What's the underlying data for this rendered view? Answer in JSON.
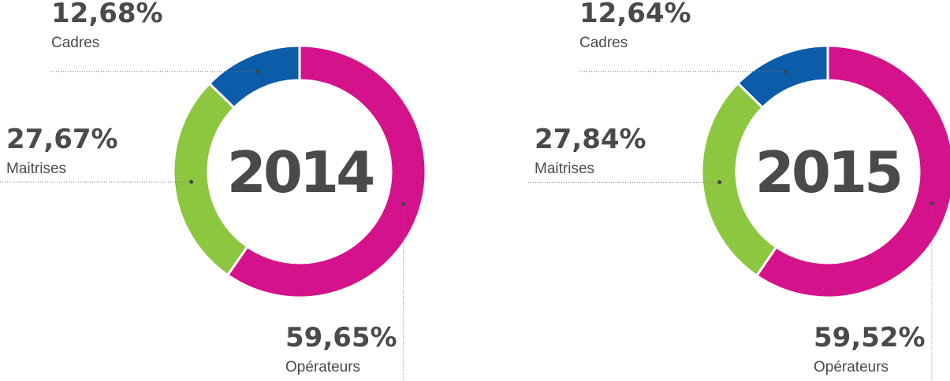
{
  "chart_data": [
    {
      "type": "pie",
      "donut": true,
      "title": "2014",
      "categories": [
        "Cadres",
        "Maitrises",
        "Opérateurs"
      ],
      "values": [
        12.68,
        27.67,
        59.65
      ],
      "value_labels": [
        "12,68%",
        "27,67%",
        "59,65%"
      ],
      "colors": [
        "#0b5ca9",
        "#8dc63f",
        "#d4128b"
      ]
    },
    {
      "type": "pie",
      "donut": true,
      "title": "2015",
      "categories": [
        "Cadres",
        "Maitrises",
        "Opérateurs"
      ],
      "values": [
        12.64,
        27.84,
        59.52
      ],
      "value_labels": [
        "12,64%",
        "27,84%",
        "59,52%"
      ],
      "colors": [
        "#0b5ca9",
        "#8dc63f",
        "#d4128b"
      ]
    }
  ]
}
